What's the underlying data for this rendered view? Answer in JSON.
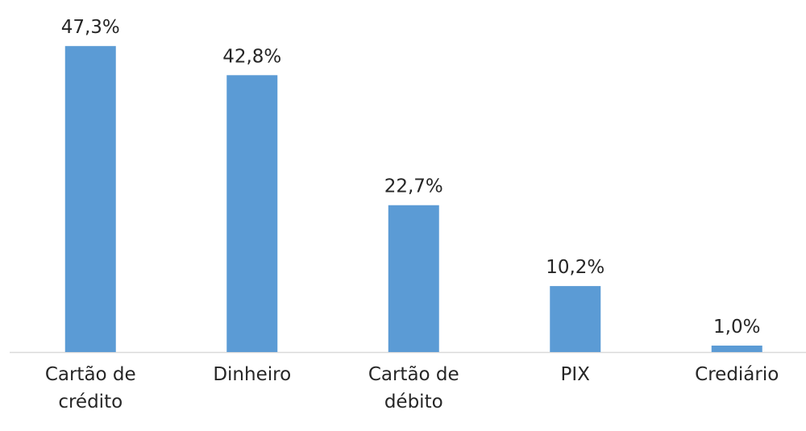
{
  "chart_data": {
    "type": "bar",
    "categories": [
      "Cartão de crédito",
      "Dinheiro",
      "Cartão de débito",
      "PIX",
      "Crediário"
    ],
    "values": [
      47.3,
      42.8,
      22.7,
      10.2,
      1.0
    ],
    "value_labels": [
      "47,3%",
      "42,8%",
      "22,7%",
      "10,2%",
      "1,0%"
    ],
    "color": "#5b9bd5"
  }
}
